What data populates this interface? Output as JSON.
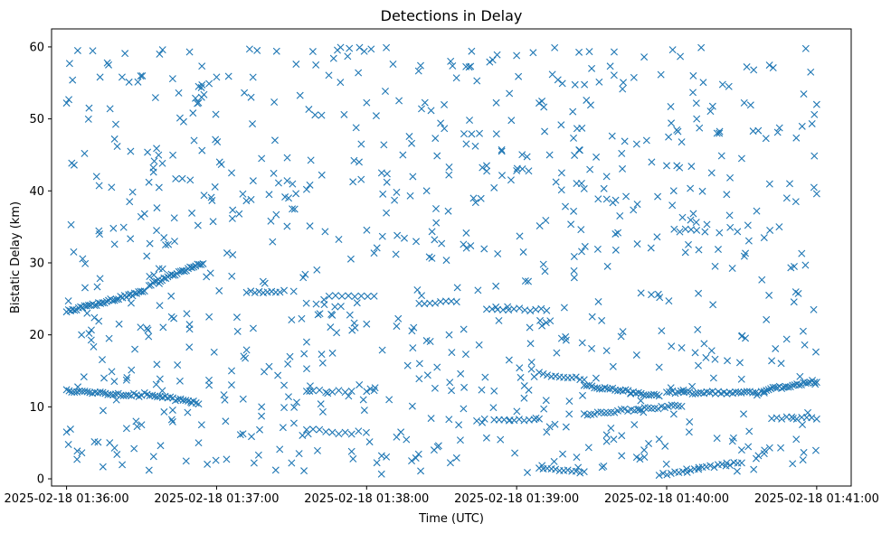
{
  "chart_data": {
    "type": "scatter",
    "title": "Detections in Delay",
    "xlabel": "Time (UTC)",
    "ylabel": "Bistatic Delay (km)",
    "marker": "x",
    "color": "#1f77b4",
    "grid": false,
    "x_unit": "minutes after 2025-02-18 01:36:00",
    "xlim": [
      -0.1,
      5.23
    ],
    "ylim": [
      -1.0,
      62.5
    ],
    "xticks": [
      0,
      1,
      2,
      3,
      4,
      5
    ],
    "xtick_labels": [
      "2025-02-18 01:36:00",
      "2025-02-18 01:37:00",
      "2025-02-18 01:38:00",
      "2025-02-18 01:39:00",
      "2025-02-18 01:40:00",
      "2025-02-18 01:41:00"
    ],
    "yticks": [
      0,
      10,
      20,
      30,
      40,
      50,
      60
    ],
    "ytick_labels": [
      "0",
      "10",
      "20",
      "30",
      "40",
      "50",
      "60"
    ],
    "tracks": [
      {
        "x0": 0.0,
        "x1": 0.52,
        "y0": 23.2,
        "y1": 26.0,
        "n": 40
      },
      {
        "x0": 0.55,
        "x1": 0.91,
        "y0": 27.0,
        "y1": 30.0,
        "n": 30
      },
      {
        "x0": 0.0,
        "x1": 0.5,
        "y0": 12.2,
        "y1": 11.6,
        "n": 30
      },
      {
        "x0": 0.52,
        "x1": 0.88,
        "y0": 11.8,
        "y1": 10.5,
        "n": 22
      },
      {
        "x0": 1.2,
        "x1": 1.45,
        "y0": 26.0,
        "y1": 26.0,
        "n": 10
      },
      {
        "x0": 1.6,
        "x1": 1.9,
        "y0": 12.2,
        "y1": 12.2,
        "n": 8
      },
      {
        "x0": 1.6,
        "x1": 1.9,
        "y0": 6.8,
        "y1": 6.2,
        "n": 8
      },
      {
        "x0": 1.75,
        "x1": 2.05,
        "y0": 25.5,
        "y1": 25.5,
        "n": 8
      },
      {
        "x0": 2.0,
        "x1": 2.05,
        "y0": 12.3,
        "y1": 12.3,
        "n": 3
      },
      {
        "x0": 2.35,
        "x1": 2.6,
        "y0": 24.5,
        "y1": 24.5,
        "n": 8
      },
      {
        "x0": 2.8,
        "x1": 3.2,
        "y0": 23.5,
        "y1": 23.5,
        "n": 12
      },
      {
        "x0": 2.85,
        "x1": 3.15,
        "y0": 8.2,
        "y1": 8.2,
        "n": 10
      },
      {
        "x0": 3.15,
        "x1": 3.45,
        "y0": 14.6,
        "y1": 13.8,
        "n": 12
      },
      {
        "x0": 3.15,
        "x1": 3.45,
        "y0": 1.6,
        "y1": 0.8,
        "n": 12
      },
      {
        "x0": 3.45,
        "x1": 3.95,
        "y0": 13.0,
        "y1": 11.5,
        "n": 30
      },
      {
        "x0": 3.45,
        "x1": 4.1,
        "y0": 9.0,
        "y1": 10.2,
        "n": 30
      },
      {
        "x0": 3.95,
        "x1": 4.5,
        "y0": 0.6,
        "y1": 2.3,
        "n": 22
      },
      {
        "x0": 4.0,
        "x1": 4.65,
        "y0": 12.0,
        "y1": 12.0,
        "n": 35
      },
      {
        "x0": 4.65,
        "x1": 5.0,
        "y0": 12.3,
        "y1": 13.6,
        "n": 25
      },
      {
        "x0": 4.7,
        "x1": 5.0,
        "y0": 8.5,
        "y1": 8.3,
        "n": 10
      },
      {
        "x0": 4.05,
        "x1": 4.2,
        "y0": 34.5,
        "y1": 34.5,
        "n": 5
      }
    ],
    "scatter_sample": {
      "count": 650,
      "xmin": 0.0,
      "xmax": 5.0,
      "ymin": 0.5,
      "ymax": 60.0
    },
    "points": [
      [
        0.0,
        52.2
      ],
      [
        0.02,
        57.7
      ],
      [
        0.04,
        55.4
      ],
      [
        0.03,
        35.3
      ],
      [
        0.0,
        6.5
      ],
      [
        0.07,
        2.7
      ],
      [
        0.12,
        45.2
      ],
      [
        0.15,
        51.5
      ],
      [
        0.28,
        57.5
      ],
      [
        0.32,
        47.2
      ],
      [
        0.37,
        55.8
      ],
      [
        0.55,
        1.2
      ],
      [
        0.6,
        45.9
      ],
      [
        0.62,
        59.0
      ],
      [
        0.64,
        59.6
      ],
      [
        0.82,
        59.3
      ],
      [
        0.88,
        54.5
      ],
      [
        0.95,
        54.9
      ],
      [
        1.0,
        55.8
      ],
      [
        1.22,
        59.7
      ],
      [
        1.27,
        59.5
      ],
      [
        1.23,
        53.0
      ],
      [
        1.4,
        59.4
      ],
      [
        1.53,
        57.6
      ],
      [
        1.78,
        58.4
      ],
      [
        2.03,
        59.7
      ],
      [
        2.36,
        57.4
      ],
      [
        2.56,
        58.0
      ],
      [
        2.7,
        59.4
      ],
      [
        2.87,
        58.9
      ],
      [
        3.0,
        58.8
      ],
      [
        3.11,
        59.2
      ],
      [
        3.5,
        57.0
      ],
      [
        3.65,
        59.3
      ],
      [
        3.85,
        58.6
      ],
      [
        4.04,
        59.6
      ],
      [
        4.23,
        59.9
      ],
      [
        4.58,
        56.8
      ],
      [
        4.71,
        57.1
      ],
      [
        4.96,
        56.5
      ],
      [
        5.0,
        52.0
      ],
      [
        5.0,
        39.6
      ],
      [
        4.98,
        23.5
      ],
      [
        4.9,
        31.3
      ],
      [
        4.91,
        20.5
      ],
      [
        4.92,
        18.6
      ],
      [
        4.6,
        37.2
      ],
      [
        4.82,
        41.0
      ],
      [
        4.55,
        6.6
      ],
      [
        4.58,
        1.3
      ],
      [
        4.65,
        3.5
      ],
      [
        4.76,
        4.3
      ],
      [
        4.4,
        2.2
      ],
      [
        4.5,
        4.0
      ],
      [
        3.2,
        6.5
      ],
      [
        3.25,
        2.4
      ],
      [
        3.4,
        3.0
      ],
      [
        3.57,
        1.6
      ],
      [
        3.6,
        5.2
      ],
      [
        3.7,
        3.2
      ],
      [
        3.8,
        3.0
      ],
      [
        3.85,
        4.0
      ],
      [
        2.45,
        4.0
      ],
      [
        2.48,
        4.6
      ],
      [
        2.47,
        15.5
      ],
      [
        2.43,
        8.4
      ],
      [
        2.6,
        2.9
      ],
      [
        2.3,
        2.5
      ],
      [
        2.2,
        5.8
      ],
      [
        2.1,
        3.2
      ],
      [
        1.9,
        3.8
      ],
      [
        1.88,
        11.5
      ],
      [
        1.55,
        3.5
      ],
      [
        1.5,
        2.2
      ],
      [
        1.45,
        9.9
      ],
      [
        1.28,
        3.3
      ],
      [
        1.25,
        2.2
      ],
      [
        1.06,
        8.0
      ],
      [
        0.9,
        7.5
      ],
      [
        0.88,
        5.0
      ],
      [
        0.65,
        9.3
      ],
      [
        0.45,
        4.2
      ],
      [
        0.5,
        7.5
      ],
      [
        0.58,
        3.1
      ],
      [
        0.1,
        20.0
      ],
      [
        0.15,
        20.2
      ],
      [
        0.2,
        42.0
      ],
      [
        0.22,
        34.0
      ],
      [
        0.3,
        40.5
      ],
      [
        0.42,
        38.5
      ],
      [
        0.6,
        34.5
      ],
      [
        0.66,
        32.5
      ],
      [
        0.72,
        33.0
      ],
      [
        0.78,
        49.6
      ],
      [
        0.85,
        47.0
      ],
      [
        0.9,
        53.0
      ],
      [
        1.02,
        44.0
      ],
      [
        1.1,
        42.5
      ],
      [
        1.15,
        36.8
      ],
      [
        1.3,
        44.5
      ],
      [
        1.35,
        39.5
      ],
      [
        1.48,
        39.0
      ],
      [
        1.6,
        40.2
      ],
      [
        1.7,
        50.5
      ],
      [
        1.85,
        50.6
      ],
      [
        1.95,
        44.0
      ],
      [
        2.1,
        42.5
      ],
      [
        2.2,
        39.8
      ],
      [
        2.3,
        46.6
      ],
      [
        2.4,
        40.0
      ],
      [
        2.55,
        43.3
      ],
      [
        2.7,
        47.9
      ],
      [
        2.8,
        43.5
      ],
      [
        2.9,
        45.7
      ],
      [
        3.0,
        42.8
      ],
      [
        3.15,
        52.2
      ],
      [
        3.22,
        45.0
      ],
      [
        3.3,
        42.5
      ],
      [
        3.45,
        40.3
      ],
      [
        3.6,
        42.0
      ],
      [
        3.7,
        45.2
      ],
      [
        3.8,
        46.5
      ],
      [
        3.9,
        44.0
      ],
      [
        4.0,
        43.5
      ],
      [
        4.1,
        46.8
      ],
      [
        4.2,
        50.0
      ],
      [
        4.3,
        42.5
      ],
      [
        4.4,
        39.5
      ],
      [
        4.5,
        44.5
      ],
      [
        4.65,
        33.5
      ],
      [
        4.75,
        35.0
      ],
      [
        4.85,
        29.5
      ],
      [
        0.35,
        21.5
      ],
      [
        0.7,
        22.5
      ],
      [
        0.82,
        20.8
      ],
      [
        0.95,
        22.5
      ],
      [
        1.1,
        15.0
      ],
      [
        1.2,
        17.9
      ],
      [
        1.35,
        15.6
      ],
      [
        1.6,
        19.0
      ],
      [
        1.7,
        17.3
      ],
      [
        1.8,
        20.3
      ],
      [
        2.0,
        21.5
      ],
      [
        2.2,
        21.2
      ],
      [
        2.4,
        19.2
      ],
      [
        2.55,
        20.0
      ],
      [
        2.75,
        18.6
      ],
      [
        2.95,
        16.5
      ],
      [
        3.1,
        16.2
      ],
      [
        3.3,
        19.5
      ],
      [
        3.5,
        18.1
      ],
      [
        3.6,
        17.8
      ],
      [
        3.8,
        17.2
      ],
      [
        3.95,
        15.5
      ],
      [
        4.1,
        18.2
      ],
      [
        4.3,
        17.8
      ],
      [
        4.5,
        19.8
      ],
      [
        4.7,
        16.4
      ],
      [
        4.8,
        19.4
      ],
      [
        0.25,
        14.0
      ],
      [
        0.4,
        7.0
      ],
      [
        0.95,
        13.0
      ],
      [
        1.3,
        10.0
      ],
      [
        1.45,
        13.0
      ],
      [
        2.15,
        11.0
      ],
      [
        2.35,
        13.9
      ],
      [
        2.65,
        12.7
      ],
      [
        2.85,
        12.2
      ],
      [
        3.05,
        11.2
      ],
      [
        3.35,
        9.0
      ],
      [
        3.6,
        6.1
      ],
      [
        3.7,
        6.0
      ],
      [
        3.95,
        5.5
      ],
      [
        4.15,
        6.5
      ]
    ]
  }
}
